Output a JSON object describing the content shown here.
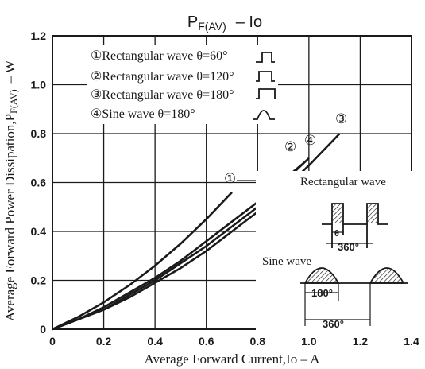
{
  "chart_data": {
    "type": "line",
    "title_main": "P",
    "title_sub": "F(AV)",
    "title_rest": "–  Io",
    "xlabel": "Average Forward Current,Io – A",
    "ylabel": "Average Forward Power Dissipation,P",
    "ylabel_sub": "F(AV)",
    "ylabel_unit": "– W",
    "xlim": [
      0,
      1.4
    ],
    "ylim": [
      0,
      1.2
    ],
    "grid": true,
    "x_ticks": [
      "0",
      "0.2",
      "0.4",
      "0.6",
      "0.8",
      "1.0",
      "1.2",
      "1.4"
    ],
    "y_ticks": [
      "0",
      "0.2",
      "0.4",
      "0.6",
      "0.8",
      "1.0",
      "1.2"
    ],
    "series": [
      {
        "name": "Rectangular wave θ=60°",
        "marker": "①",
        "x": [
          0,
          0.1,
          0.2,
          0.3,
          0.4,
          0.5,
          0.6,
          0.7
        ],
        "y": [
          0,
          0.05,
          0.11,
          0.18,
          0.26,
          0.35,
          0.45,
          0.56
        ]
      },
      {
        "name": "Rectangular wave θ=120°",
        "marker": "②",
        "x": [
          0,
          0.1,
          0.2,
          0.3,
          0.4,
          0.5,
          0.6,
          0.7,
          0.8,
          0.9,
          0.98
        ],
        "y": [
          0,
          0.04,
          0.09,
          0.15,
          0.21,
          0.28,
          0.36,
          0.44,
          0.52,
          0.61,
          0.68
        ]
      },
      {
        "name": "Rectangular wave θ=180°",
        "marker": "③",
        "x": [
          0,
          0.1,
          0.2,
          0.3,
          0.4,
          0.5,
          0.6,
          0.7,
          0.8,
          0.9,
          1.0,
          1.12
        ],
        "y": [
          0,
          0.04,
          0.08,
          0.13,
          0.19,
          0.25,
          0.32,
          0.4,
          0.48,
          0.57,
          0.67,
          0.8
        ]
      },
      {
        "name": "Sine wave θ=180°",
        "marker": "④",
        "x": [
          0,
          0.1,
          0.2,
          0.3,
          0.4,
          0.5,
          0.6,
          0.7,
          0.8,
          0.9,
          1.0
        ],
        "y": [
          0,
          0.04,
          0.08,
          0.14,
          0.2,
          0.27,
          0.34,
          0.42,
          0.5,
          0.6,
          0.7
        ]
      }
    ],
    "legend_location": "top-left"
  },
  "annotations": {
    "rect_wave": "Rectangular wave",
    "sine_wave": "Sine wave",
    "theta": "θ",
    "deg360": "360°",
    "deg180": "180°"
  },
  "colors": {
    "ink": "#1a1a1a",
    "background": "#ffffff"
  }
}
